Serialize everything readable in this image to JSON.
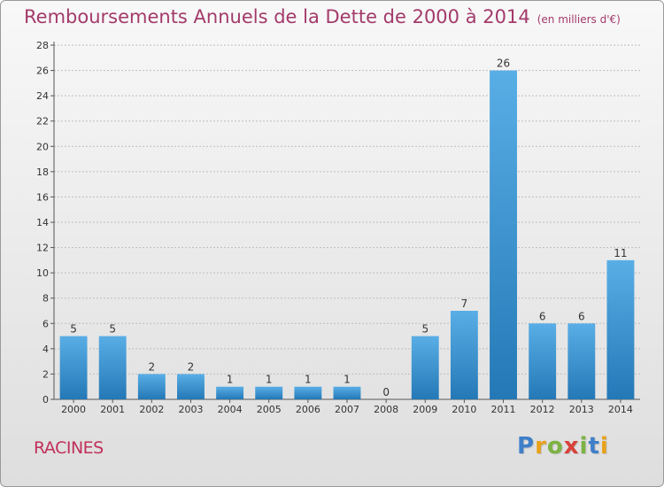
{
  "title": "Remboursements Annuels de la Dette de 2000 à 2014",
  "unit": "(en milliers d'€)",
  "commune": "RACINES",
  "logo": {
    "text": "Proxiti",
    "letters": [
      {
        "char": "P",
        "color": "#3f7fc9"
      },
      {
        "char": "r",
        "color": "#e8a21b"
      },
      {
        "char": "o",
        "color": "#7cb342"
      },
      {
        "char": "x",
        "color": "#d8413a"
      },
      {
        "char": "i",
        "color": "#7cb342"
      },
      {
        "char": "t",
        "color": "#3f7fc9"
      },
      {
        "char": "i",
        "color": "#e8a21b"
      }
    ]
  },
  "colors": {
    "bar_light": "#5aaee6",
    "bar_dark": "#2478b6",
    "title": "#a33a6a",
    "commune": "#c0305a",
    "grid": "#bdbdbd"
  },
  "chart_data": {
    "type": "bar",
    "title": "Remboursements Annuels de la Dette de 2000 à 2014",
    "subtitle": "(en milliers d'€)",
    "xlabel": "",
    "ylabel": "",
    "categories": [
      "2000",
      "2001",
      "2002",
      "2003",
      "2004",
      "2005",
      "2006",
      "2007",
      "2008",
      "2009",
      "2010",
      "2011",
      "2012",
      "2013",
      "2014"
    ],
    "values": [
      5,
      5,
      2,
      2,
      1,
      1,
      1,
      1,
      0,
      5,
      7,
      26,
      6,
      6,
      11
    ],
    "ylim": [
      0,
      28
    ],
    "yticks": [
      0,
      2,
      4,
      6,
      8,
      10,
      12,
      14,
      16,
      18,
      20,
      22,
      24,
      26,
      28
    ],
    "grid": true,
    "data_labels": true
  }
}
